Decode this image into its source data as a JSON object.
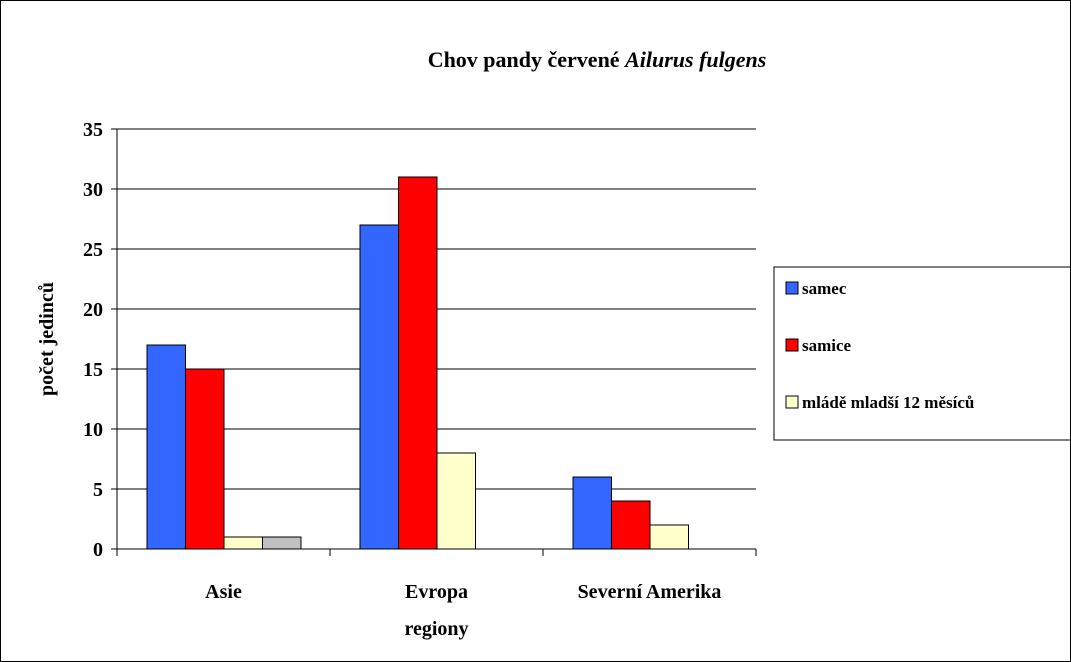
{
  "chart_data": {
    "type": "bar",
    "title_parts": [
      {
        "text": "Chov pandy červené ",
        "italic": false
      },
      {
        "text": "Ailurus fulgens",
        "italic": true
      }
    ],
    "xlabel_lines": [
      "Evropa",
      "regiony"
    ],
    "ylabel": "počet jedinců",
    "categories": [
      "Asie",
      "Evropa",
      "Severní Amerika"
    ],
    "ylim": [
      0,
      35
    ],
    "yticks": [
      0,
      5,
      10,
      15,
      20,
      25,
      30,
      35
    ],
    "grid": true,
    "legend_position": "right",
    "series": [
      {
        "name": "samec",
        "color": "#3366ff",
        "values": [
          17,
          27,
          6
        ],
        "in_legend": true
      },
      {
        "name": "samice",
        "color": "#ff0000",
        "values": [
          15,
          31,
          4
        ],
        "in_legend": true
      },
      {
        "name": "mládě mladší 12 měsíců",
        "color": "#ffffcc",
        "values": [
          1,
          8,
          2
        ],
        "in_legend": true
      },
      {
        "color": "#c0c0c0",
        "values": [
          1,
          null,
          null
        ],
        "in_legend": false
      }
    ]
  }
}
